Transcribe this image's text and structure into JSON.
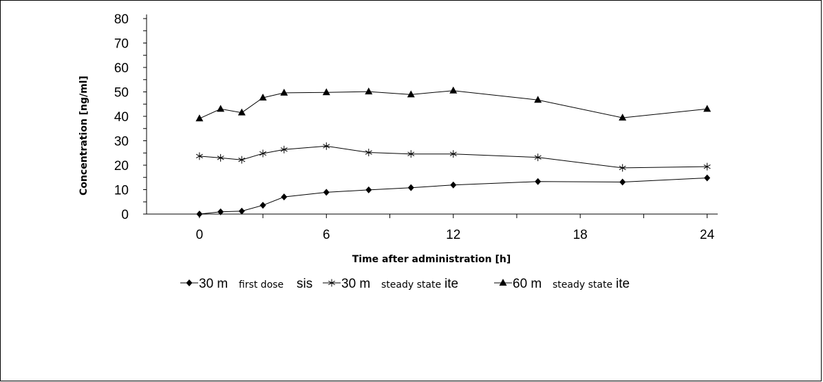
{
  "chart_data": {
    "type": "line",
    "xlabel": "Time after administration [h]",
    "ylabel": "Concentration [ng/ml]",
    "xlim": [
      -2.5,
      24.5
    ],
    "ylim": [
      0,
      80
    ],
    "x_ticks": [
      0,
      6,
      12,
      18,
      24
    ],
    "y_ticks": [
      0,
      10,
      20,
      30,
      40,
      50,
      60,
      70,
      80
    ],
    "x_tick_labels": [
      "0",
      "6",
      "12",
      "18",
      "24"
    ],
    "y_tick_labels": [
      "0",
      "10",
      "20",
      "30",
      "40",
      "50",
      "60",
      "70",
      "80"
    ],
    "grid": false,
    "legend_position": "bottom",
    "series": [
      {
        "name": "30 mg first dose",
        "legend_main": "30 m",
        "legend_sub": "first dose",
        "legend_tail": "sis",
        "marker": "diamond",
        "x": [
          0,
          1,
          2,
          3,
          4,
          6,
          8,
          10,
          12,
          16,
          20,
          24
        ],
        "y": [
          0,
          0.9,
          1.2,
          3.6,
          7,
          8.9,
          9.9,
          10.8,
          11.9,
          13.3,
          13.1,
          14.8
        ]
      },
      {
        "name": "30 mg steady state",
        "legend_main": "30 m",
        "legend_sub": "steady state",
        "legend_tail": "ite",
        "marker": "star",
        "x": [
          0,
          1,
          2,
          3,
          4,
          6,
          8,
          10,
          12,
          16,
          20,
          24
        ],
        "y": [
          23.7,
          23,
          22.2,
          24.8,
          26.4,
          27.8,
          25.2,
          24.6,
          24.6,
          23.2,
          18.9,
          19.4
        ]
      },
      {
        "name": "60 mg steady state",
        "legend_main": "60 m",
        "legend_sub": "steady state",
        "legend_tail": "ite",
        "marker": "triangle",
        "x": [
          0,
          1,
          2,
          3,
          4,
          6,
          8,
          10,
          12,
          16,
          20,
          24
        ],
        "y": [
          39.1,
          43,
          41.5,
          47.6,
          49.6,
          49.8,
          50.1,
          48.9,
          50.5,
          46.7,
          39.4,
          43
        ]
      }
    ]
  }
}
